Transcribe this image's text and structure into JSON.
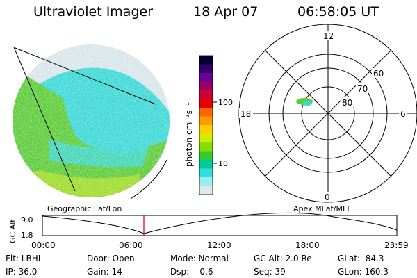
{
  "header": {
    "instrument": "Ultraviolet Imager",
    "date": "18 Apr 07",
    "time": "06:58:05 UT"
  },
  "colorbar": {
    "unit_label": "photon cm⁻²s⁻¹",
    "ticks": [
      "100",
      "10"
    ],
    "colors": [
      "#000033",
      "#330066",
      "#660099",
      "#990066",
      "#cc0033",
      "#e60000",
      "#ff6600",
      "#ff9900",
      "#ffcc00",
      "#ccee00",
      "#88dd00",
      "#33cc33",
      "#00cc99",
      "#33dddd",
      "#99eeee",
      "#dde8ea"
    ]
  },
  "polar_plot": {
    "mlt_labels": [
      "12",
      "18",
      "6",
      "0"
    ],
    "lat_labels": [
      "60",
      "70",
      "80"
    ]
  },
  "image_panel": {
    "colors": {
      "green": "#5dcc3a",
      "yellow_green": "#9edc2a",
      "cyan": "#3cd8d6",
      "pale": "#d9e6ea"
    }
  },
  "timeline": {
    "left_label": "Geographic Lat/Lon",
    "right_label": "Apex MLat/MLT",
    "y_axis_label": "GC Alt",
    "y_ticks": [
      "9.0",
      "1.8"
    ],
    "x_ticks": [
      "00:00",
      "06:00",
      "12:00",
      "18:00",
      "23:59"
    ],
    "marker_color": "#cc0000"
  },
  "status": {
    "row1": [
      {
        "label": "Flt: LBHL"
      },
      {
        "label": "Door: Open"
      },
      {
        "label": "Mode: Normal"
      },
      {
        "label": "GC Alt: 2.0 Re"
      },
      {
        "label": "GLat:  84.3"
      }
    ],
    "row2": [
      {
        "label": "IP: 36.0"
      },
      {
        "label": "Gain: 14"
      },
      {
        "label": "Dsp:    0.6"
      },
      {
        "label": "Seq: 39"
      },
      {
        "label": "GLon: 160.3"
      }
    ]
  }
}
